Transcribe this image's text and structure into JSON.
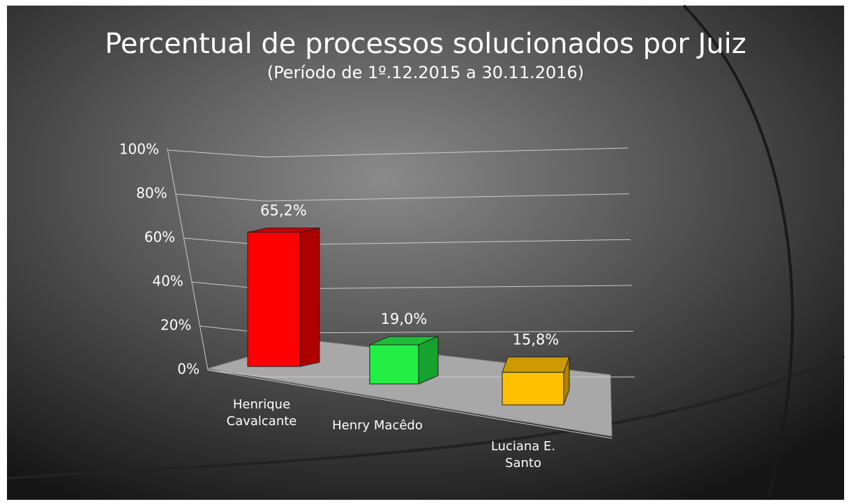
{
  "chart_data": {
    "type": "bar3d",
    "title": "Percentual de processos solucionados por Juiz",
    "subtitle": "(Período de 1º.12.2015  a  30.11.2016)",
    "categories": [
      "Henrique Cavalcante",
      "Henry Macêdo",
      "Luciana E. Santo"
    ],
    "values": [
      65.2,
      19.0,
      15.8
    ],
    "value_labels": [
      "65,2%",
      "19,0%",
      "15,8%"
    ],
    "colors": [
      "#ff0000",
      "#22ee44",
      "#ffc000"
    ],
    "ylim": [
      0,
      100
    ],
    "yticks": [
      {
        "value": 0,
        "label": "0%"
      },
      {
        "value": 20,
        "label": "20%"
      },
      {
        "value": 40,
        "label": "40%"
      },
      {
        "value": 60,
        "label": "60%"
      },
      {
        "value": 80,
        "label": "80%"
      },
      {
        "value": 100,
        "label": "100%"
      }
    ],
    "grid": true
  }
}
